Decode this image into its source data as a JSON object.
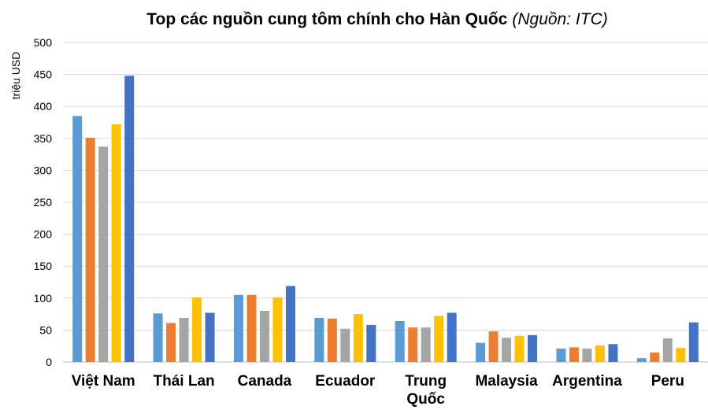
{
  "chart_data": {
    "type": "bar",
    "title": "Top các nguồn cung tôm chính cho Hàn Quốc",
    "title_source": "(Nguồn: ITC)",
    "ylabel": "triệu USD",
    "xlabel": "",
    "ylim": [
      0,
      500
    ],
    "yticks": [
      0,
      50,
      100,
      150,
      200,
      250,
      300,
      350,
      400,
      450,
      500
    ],
    "grid": true,
    "legend": "none",
    "categories": [
      "Việt Nam",
      "Thái Lan",
      "Canada",
      "Ecuador",
      "Trung Quốc",
      "Malaysia",
      "Argentina",
      "Peru"
    ],
    "category_lines": [
      [
        "Việt Nam"
      ],
      [
        "Thái Lan"
      ],
      [
        "Canada"
      ],
      [
        "Ecuador"
      ],
      [
        "Trung",
        "Quốc"
      ],
      [
        "Malaysia"
      ],
      [
        "Argentina"
      ],
      [
        "Peru"
      ]
    ],
    "series": [
      {
        "color": "#5b9bd5",
        "values": [
          385,
          76,
          105,
          69,
          64,
          30,
          21,
          6
        ]
      },
      {
        "color": "#ed7d31",
        "values": [
          351,
          61,
          105,
          68,
          54,
          48,
          23,
          15
        ]
      },
      {
        "color": "#a5a5a5",
        "values": [
          337,
          69,
          80,
          52,
          54,
          38,
          21,
          37
        ]
      },
      {
        "color": "#ffc000",
        "values": [
          372,
          101,
          101,
          75,
          72,
          41,
          26,
          22
        ]
      },
      {
        "color": "#4472c4",
        "values": [
          448,
          77,
          119,
          58,
          77,
          42,
          28,
          62
        ]
      }
    ]
  }
}
